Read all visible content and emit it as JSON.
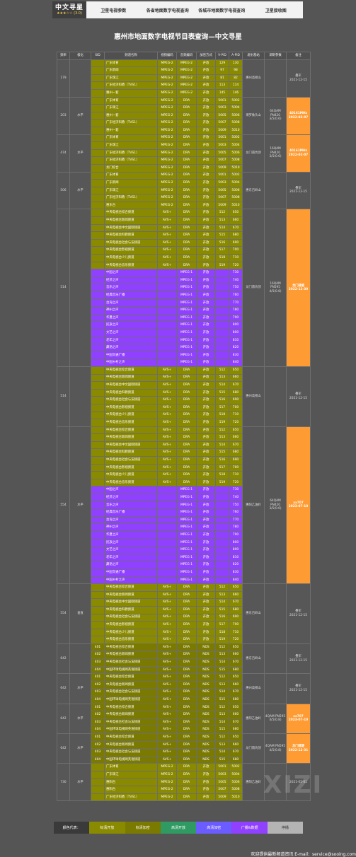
{
  "nav": {
    "logo_title": "中文寻星",
    "logo_sub": "★★★☆☆ (3.0)",
    "items": [
      "卫星电视参数",
      "各省地面数字电视查询",
      "各城市地面数字电视查询",
      "卫星接收图"
    ]
  },
  "page_title": "惠州市地面数字电视节目表查询—中文寻星",
  "columns": [
    "频率",
    "极化",
    "SID",
    "频道名称",
    "视频编码",
    "音频编码",
    "加密方式",
    "V-PID",
    "A-PID",
    "发射基站",
    "调制参数",
    "备注"
  ],
  "colors": {
    "std": "#8a8a00",
    "nds": "#7a7a00",
    "radio": "#9040ff",
    "highlight": "#ff9b33",
    "bg": "#555555"
  },
  "groups": [
    {
      "freq": "179",
      "pol": "",
      "site": "惠州高榜山",
      "mod": "",
      "note": "叠军",
      "note2": "2021-12-15",
      "hl": false,
      "rows": [
        [
          "",
          "广东体育",
          "MPEG-2",
          "MPEG-2",
          "开放",
          "129",
          "130"
        ],
        [
          "",
          "广东新闻",
          "MPEG-2",
          "MPEG-2",
          "开放",
          "97",
          "98"
        ],
        [
          "",
          "广东珠江",
          "MPEG-2",
          "MPEG-2",
          "开放",
          "81",
          "82"
        ],
        [
          "",
          "广东经济科教（TVS1）",
          "MPEG-2",
          "MPEG-2",
          "开放",
          "113",
          "114"
        ],
        [
          "",
          "惠州一套",
          "MPEG-2",
          "MPEG-2",
          "开放",
          "145",
          "146"
        ]
      ]
    },
    {
      "freq": "203",
      "pol": "水平",
      "site": "博罗象头山",
      "mod": "64QAM PN420 3/5(0.6)",
      "note": "40161MHz",
      "note2": "2022-02-07",
      "hl": true,
      "rows": [
        [
          "",
          "广东体育",
          "MPEG-2",
          "DRA",
          "开放",
          "5001",
          "5002"
        ],
        [
          "",
          "广东珠江",
          "MPEG-2",
          "DRA",
          "开放",
          "5003",
          "5004"
        ],
        [
          "",
          "惠州一套",
          "MPEG-2",
          "DRA",
          "开放",
          "5005",
          "5006"
        ],
        [
          "",
          "广东经济科教（TVS1）",
          "MPEG-2",
          "DRA",
          "开放",
          "5007",
          "5008"
        ],
        [
          "",
          "惠州一套",
          "MPEG-2",
          "DRA",
          "开放",
          "5009",
          "5010"
        ]
      ]
    },
    {
      "freq": "474",
      "pol": "水平",
      "site": "龙门南坑顶",
      "mod": "16QAM PN420 3/5(0.6)",
      "note": "40161MHz",
      "note2": "2022-02-07",
      "hl": true,
      "rows": [
        [
          "",
          "广东体育",
          "MPEG-2",
          "DRA",
          "开放",
          "5001",
          "5002"
        ],
        [
          "",
          "广东珠江",
          "MPEG-2",
          "DRA",
          "开放",
          "5003",
          "5004"
        ],
        [
          "",
          "广东经济科教（TVS1）",
          "MPEG-2",
          "DRA",
          "开放",
          "5005",
          "5006"
        ],
        [
          "",
          "广东经济科教（TVS1）",
          "MPEG-2",
          "DRA",
          "开放",
          "5007",
          "5008"
        ],
        [
          "",
          "龙门综合",
          "MPEG-2",
          "DRA",
          "开放",
          "5009",
          "5010"
        ]
      ]
    },
    {
      "freq": "506",
      "pol": "水平",
      "site": "惠东百岭山",
      "mod": "",
      "note": "叠军",
      "note2": "2021-12-15",
      "hl": false,
      "rows": [
        [
          "",
          "广东体育",
          "MPEG-2",
          "DRA",
          "开放",
          "5001",
          "5002"
        ],
        [
          "",
          "广东新闻",
          "MPEG-2",
          "DRA",
          "开放",
          "5003",
          "5004"
        ],
        [
          "",
          "广东珠江",
          "MPEG-2",
          "DRA",
          "开放",
          "5005",
          "5006"
        ],
        [
          "",
          "广东经济科教（TVS1）",
          "MPEG-2",
          "DRA",
          "开放",
          "5007",
          "5008"
        ],
        [
          "",
          "惠东台",
          "MPEG-2",
          "DRA",
          "开放",
          "5009",
          "5010"
        ]
      ]
    },
    {
      "freq": "514",
      "pol": "",
      "site": "龙门南坑顶",
      "mod": "16QAM PN595 4/5(0.8)",
      "note": "龙门疏堤",
      "note2": "2022-12-30",
      "hl": true,
      "rows": [
        [
          "",
          "中央电视台综合频道",
          "AVS+",
          "DRA",
          "开放",
          "512",
          "650"
        ],
        [
          "",
          "中央电视台新闻频道",
          "AVS+",
          "DRA",
          "开放",
          "513",
          "660"
        ],
        [
          "",
          "中央电视台中文国际频道",
          "AVS+",
          "DRA",
          "开放",
          "514",
          "670"
        ],
        [
          "",
          "中央电视台科教频道",
          "AVS+",
          "DRA",
          "开放",
          "515",
          "680"
        ],
        [
          "",
          "中央电视台社会与法频道",
          "AVS+",
          "DRA",
          "开放",
          "516",
          "690"
        ],
        [
          "",
          "中央电视台影视频道",
          "AVS+",
          "DRA",
          "开放",
          "517",
          "700"
        ],
        [
          "",
          "中央电视台少儿频道",
          "AVS+",
          "DRA",
          "开放",
          "518",
          "710"
        ],
        [
          "",
          "中央电视台音乐频道",
          "AVS+",
          "DRA",
          "开放",
          "519",
          "720"
        ],
        [
          "r",
          "中国之声",
          "",
          "MPEG-1",
          "开放",
          "",
          "730"
        ],
        [
          "r",
          "经济之声",
          "",
          "MPEG-1",
          "开放",
          "",
          "740"
        ],
        [
          "r",
          "音乐之声",
          "",
          "MPEG-1",
          "开放",
          "",
          "750"
        ],
        [
          "r",
          "经典音乐广播",
          "",
          "MPEG-1",
          "开放",
          "",
          "760"
        ],
        [
          "r",
          "台海之声",
          "",
          "MPEG-1",
          "开放",
          "",
          "770"
        ],
        [
          "r",
          "神州之声",
          "",
          "MPEG-1",
          "开放",
          "",
          "780"
        ],
        [
          "r",
          "华夏之声",
          "",
          "MPEG-1",
          "开放",
          "",
          "790"
        ],
        [
          "r",
          "民族之声",
          "",
          "MPEG-1",
          "开放",
          "",
          "800"
        ],
        [
          "r",
          "文艺之声",
          "",
          "MPEG-1",
          "开放",
          "",
          "800"
        ],
        [
          "r",
          "老年之声",
          "",
          "MPEG-1",
          "开放",
          "",
          "810"
        ],
        [
          "r",
          "藏语之声",
          "",
          "MPEG-1",
          "开放",
          "",
          "820"
        ],
        [
          "r",
          "中国交通广播",
          "",
          "MPEG-1",
          "开放",
          "",
          "830"
        ],
        [
          "r",
          "中国乡村之声",
          "",
          "MPEG-1",
          "开放",
          "",
          "840"
        ]
      ]
    },
    {
      "freq": "514",
      "pol": "",
      "site": "惠州高榜山",
      "mod": "",
      "note": "叠军",
      "note2": "2021-12-15",
      "hl": false,
      "rows": [
        [
          "",
          "中央电视台综合频道",
          "AVS+",
          "DRA",
          "开放",
          "512",
          "650"
        ],
        [
          "",
          "中央电视台新闻频道",
          "AVS+",
          "DRA",
          "开放",
          "513",
          "660"
        ],
        [
          "",
          "中央电视台中文国际频道",
          "AVS+",
          "DRA",
          "开放",
          "514",
          "670"
        ],
        [
          "",
          "中央电视台科教频道",
          "AVS+",
          "DRA",
          "开放",
          "515",
          "680"
        ],
        [
          "",
          "中央电视台社会与法频道",
          "AVS+",
          "DRA",
          "开放",
          "516",
          "690"
        ],
        [
          "",
          "中央电视台影视频道",
          "AVS+",
          "DRA",
          "开放",
          "517",
          "700"
        ],
        [
          "",
          "中央电视台少儿频道",
          "AVS+",
          "DRA",
          "开放",
          "518",
          "710"
        ],
        [
          "",
          "中央电视台音乐频道",
          "AVS+",
          "DRA",
          "开放",
          "519",
          "720"
        ]
      ]
    },
    {
      "freq": "554",
      "pol": "水平",
      "site": "惠阳乙油岭",
      "mod": "64QAM PN420 3/5(0.6)",
      "note": "xx707",
      "note2": "2023-07-10",
      "hl": true,
      "rows": [
        [
          "",
          "中央电视台综合频道",
          "AVS+",
          "DRA",
          "开放",
          "512",
          "650"
        ],
        [
          "",
          "中央电视台新闻频道",
          "AVS+",
          "DRA",
          "开放",
          "513",
          "660"
        ],
        [
          "",
          "中央电视台中文国际频道",
          "AVS+",
          "DRA",
          "开放",
          "514",
          "670"
        ],
        [
          "",
          "中央电视台科教频道",
          "AVS+",
          "DRA",
          "开放",
          "515",
          "680"
        ],
        [
          "",
          "中央电视台社会与法频道",
          "AVS+",
          "DRA",
          "开放",
          "516",
          "690"
        ],
        [
          "",
          "中央电视台影视频道",
          "AVS+",
          "DRA",
          "开放",
          "517",
          "700"
        ],
        [
          "",
          "中央电视台少儿频道",
          "AVS+",
          "DRA",
          "开放",
          "518",
          "710"
        ],
        [
          "",
          "中央电视台音乐频道",
          "AVS+",
          "DRA",
          "开放",
          "519",
          "720"
        ],
        [
          "r",
          "中国之声",
          "",
          "MPEG-1",
          "开放",
          "",
          "730"
        ],
        [
          "r",
          "经济之声",
          "",
          "MPEG-1",
          "开放",
          "",
          "740"
        ],
        [
          "r",
          "音乐之声",
          "",
          "MPEG-1",
          "开放",
          "",
          "750"
        ],
        [
          "r",
          "经典音乐广播",
          "",
          "MPEG-1",
          "开放",
          "",
          "760"
        ],
        [
          "r",
          "台海之声",
          "",
          "MPEG-1",
          "开放",
          "",
          "770"
        ],
        [
          "r",
          "神州之声",
          "",
          "MPEG-1",
          "开放",
          "",
          "780"
        ],
        [
          "r",
          "华夏之声",
          "",
          "MPEG-1",
          "开放",
          "",
          "790"
        ],
        [
          "r",
          "民族之声",
          "",
          "MPEG-1",
          "开放",
          "",
          "800"
        ],
        [
          "r",
          "文艺之声",
          "",
          "MPEG-1",
          "开放",
          "",
          "800"
        ],
        [
          "r",
          "老年之声",
          "",
          "MPEG-1",
          "开放",
          "",
          "810"
        ],
        [
          "r",
          "藏语之声",
          "",
          "MPEG-1",
          "开放",
          "",
          "820"
        ],
        [
          "r",
          "中国交通广播",
          "",
          "MPEG-1",
          "开放",
          "",
          "830"
        ],
        [
          "r",
          "中国乡村之声",
          "",
          "MPEG-1",
          "开放",
          "",
          "840"
        ]
      ]
    },
    {
      "freq": "554",
      "pol": "垂直",
      "site": "惠东百岭山",
      "mod": "",
      "note": "叠军",
      "note2": "2021-12-15",
      "hl": false,
      "rows": [
        [
          "",
          "中央电视台综合频道",
          "AVS+",
          "DRA",
          "开放",
          "512",
          "650"
        ],
        [
          "",
          "中央电视台新闻频道",
          "AVS+",
          "DRA",
          "开放",
          "513",
          "660"
        ],
        [
          "",
          "中央电视台中文国际频道",
          "AVS+",
          "DRA",
          "开放",
          "514",
          "670"
        ],
        [
          "",
          "中央电视台科教频道",
          "AVS+",
          "DRA",
          "开放",
          "515",
          "680"
        ],
        [
          "",
          "中央电视台社会与法频道",
          "AVS+",
          "DRA",
          "开放",
          "516",
          "690"
        ],
        [
          "",
          "中央电视台影视频道",
          "AVS+",
          "DRA",
          "开放",
          "517",
          "700"
        ],
        [
          "",
          "中央电视台少儿频道",
          "AVS+",
          "DRA",
          "开放",
          "518",
          "710"
        ],
        [
          "",
          "中央电视台音乐频道",
          "AVS+",
          "DRA",
          "开放",
          "519",
          "720"
        ]
      ]
    },
    {
      "freq": "642",
      "pol": "",
      "site": "惠东百岭山",
      "mod": "",
      "note": "叠军",
      "note2": "2021-12-15",
      "hl": false,
      "rows": [
        [
          "n401",
          "中央电视台综合频道",
          "AVS+",
          "DRA",
          "NDS",
          "512",
          "650"
        ],
        [
          "n402",
          "中央电视台新闻频道",
          "AVS+",
          "DRA",
          "NDS",
          "513",
          "660"
        ],
        [
          "n403",
          "中央电视台社会与法频道",
          "AVS+",
          "DRA",
          "NDS",
          "514",
          "670"
        ],
        [
          "n404",
          "中国环球电视网英语频道",
          "AVS+",
          "DRA",
          "NDS",
          "515",
          "680"
        ]
      ]
    },
    {
      "freq": "642",
      "pol": "水平",
      "site": "惠州高榜山",
      "mod": "",
      "note": "叠军",
      "note2": "2021-12-15",
      "hl": false,
      "rows": [
        [
          "n401",
          "中央电视台综合频道",
          "AVS+",
          "DRA",
          "NDS",
          "512",
          "650"
        ],
        [
          "n402",
          "中央电视台新闻频道",
          "AVS+",
          "DRA",
          "NDS",
          "513",
          "660"
        ],
        [
          "n403",
          "中央电视台社会与法频道",
          "AVS+",
          "DRA",
          "NDS",
          "514",
          "670"
        ],
        [
          "n404",
          "中国环球电视网英语频道",
          "AVS+",
          "DRA",
          "NDS",
          "515",
          "680"
        ]
      ]
    },
    {
      "freq": "642",
      "pol": "水平",
      "site": "惠阳乙油岭",
      "mod": "4QAM PN595 4/5(0.8)",
      "note": "xx707",
      "note2": "2023-07-10",
      "hl": true,
      "rows": [
        [
          "n401",
          "中央电视台综合频道",
          "AVS+",
          "DRA",
          "NDS",
          "512",
          "650"
        ],
        [
          "n402",
          "中央电视台新闻频道",
          "AVS+",
          "DRA",
          "NDS",
          "513",
          "660"
        ],
        [
          "n403",
          "中央电视台社会与法频道",
          "AVS+",
          "DRA",
          "NDS",
          "514",
          "670"
        ],
        [
          "n404",
          "中国环球电视网英语频道",
          "AVS+",
          "DRA",
          "NDS",
          "515",
          "680"
        ]
      ]
    },
    {
      "freq": "642",
      "pol": "水平",
      "site": "龙门南坑顶",
      "mod": "4QAM PN595 4/5(0.8)",
      "note": "龙门疏堤",
      "note2": "2022-12-31",
      "hl": true,
      "rows": [
        [
          "n401",
          "中央电视台综合频道",
          "AVS+",
          "DRA",
          "NDS",
          "512",
          "650"
        ],
        [
          "n402",
          "中央电视台新闻频道",
          "AVS+",
          "DRA",
          "NDS",
          "513",
          "660"
        ],
        [
          "n403",
          "中央电视台社会与法频道",
          "AVS+",
          "DRA",
          "NDS",
          "514",
          "670"
        ],
        [
          "n404",
          "中国环球电视网英语频道",
          "AVS+",
          "DRA",
          "NDS",
          "515",
          "680"
        ]
      ]
    },
    {
      "freq": "730",
      "pol": "水平",
      "site": "惠阳乙油岭",
      "mod": "",
      "note": "",
      "note2": "2021-05-01",
      "hl": false,
      "rows": [
        [
          "",
          "广东体育",
          "MPEG-2",
          "DRA",
          "开放",
          "5001",
          "5002"
        ],
        [
          "",
          "广东珠江",
          "MPEG-2",
          "DRA",
          "开放",
          "5003",
          "5004"
        ],
        [
          "",
          "惠阳台",
          "MPEG-2",
          "DRA",
          "开放",
          "5005",
          "5006"
        ],
        [
          "",
          "惠阳台",
          "MPEG-2",
          "DRA",
          "开放",
          "5007",
          "5008"
        ],
        [
          "",
          "广东经济科教（TVS1）",
          "MPEG-2",
          "DRA",
          "开放",
          "5009",
          "5010"
        ]
      ]
    }
  ],
  "legend": [
    {
      "label": "颜色代表：",
      "color": "#3a3a3a"
    },
    {
      "label": "标清开放",
      "color": "#8a8a00"
    },
    {
      "label": "标清加密",
      "color": "#7a7a00"
    },
    {
      "label": "高清开放",
      "color": "#2f9b63"
    },
    {
      "label": "高清加密",
      "color": "#6a5cff"
    },
    {
      "label": "广播&数据",
      "color": "#9040ff"
    },
    {
      "label": "停播",
      "color": "#b4b4b4"
    }
  ],
  "footer": "欢迎提供最新频道资讯 E-mail：service@sooing.com",
  "watermark": "XIZI"
}
